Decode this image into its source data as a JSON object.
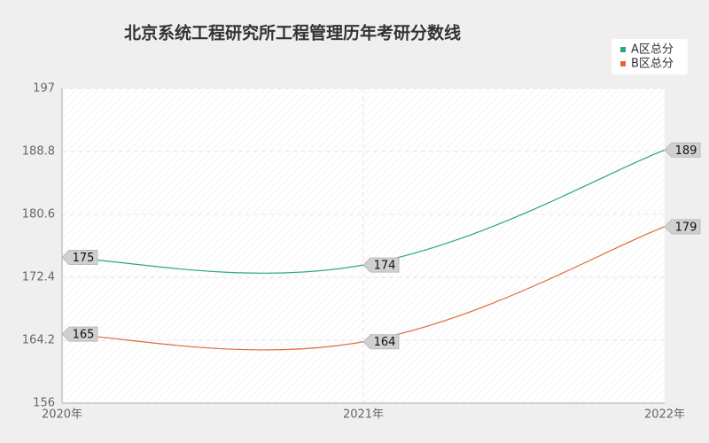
{
  "chart_data": {
    "type": "line",
    "title": "北京系统工程研究所工程管理历年考研分数线",
    "categories": [
      "2020年",
      "2021年",
      "2022年"
    ],
    "series": [
      {
        "name": "A区总分",
        "color": "#2aa77f",
        "values": [
          175,
          174,
          189
        ]
      },
      {
        "name": "B区总分",
        "color": "#e06a3c",
        "values": [
          165,
          164,
          179
        ]
      }
    ],
    "ylim": [
      156,
      197
    ],
    "yticks": [
      156,
      164.2,
      172.4,
      180.6,
      188.8,
      197
    ],
    "grid": true,
    "smooth": true,
    "legend": "top-right"
  }
}
